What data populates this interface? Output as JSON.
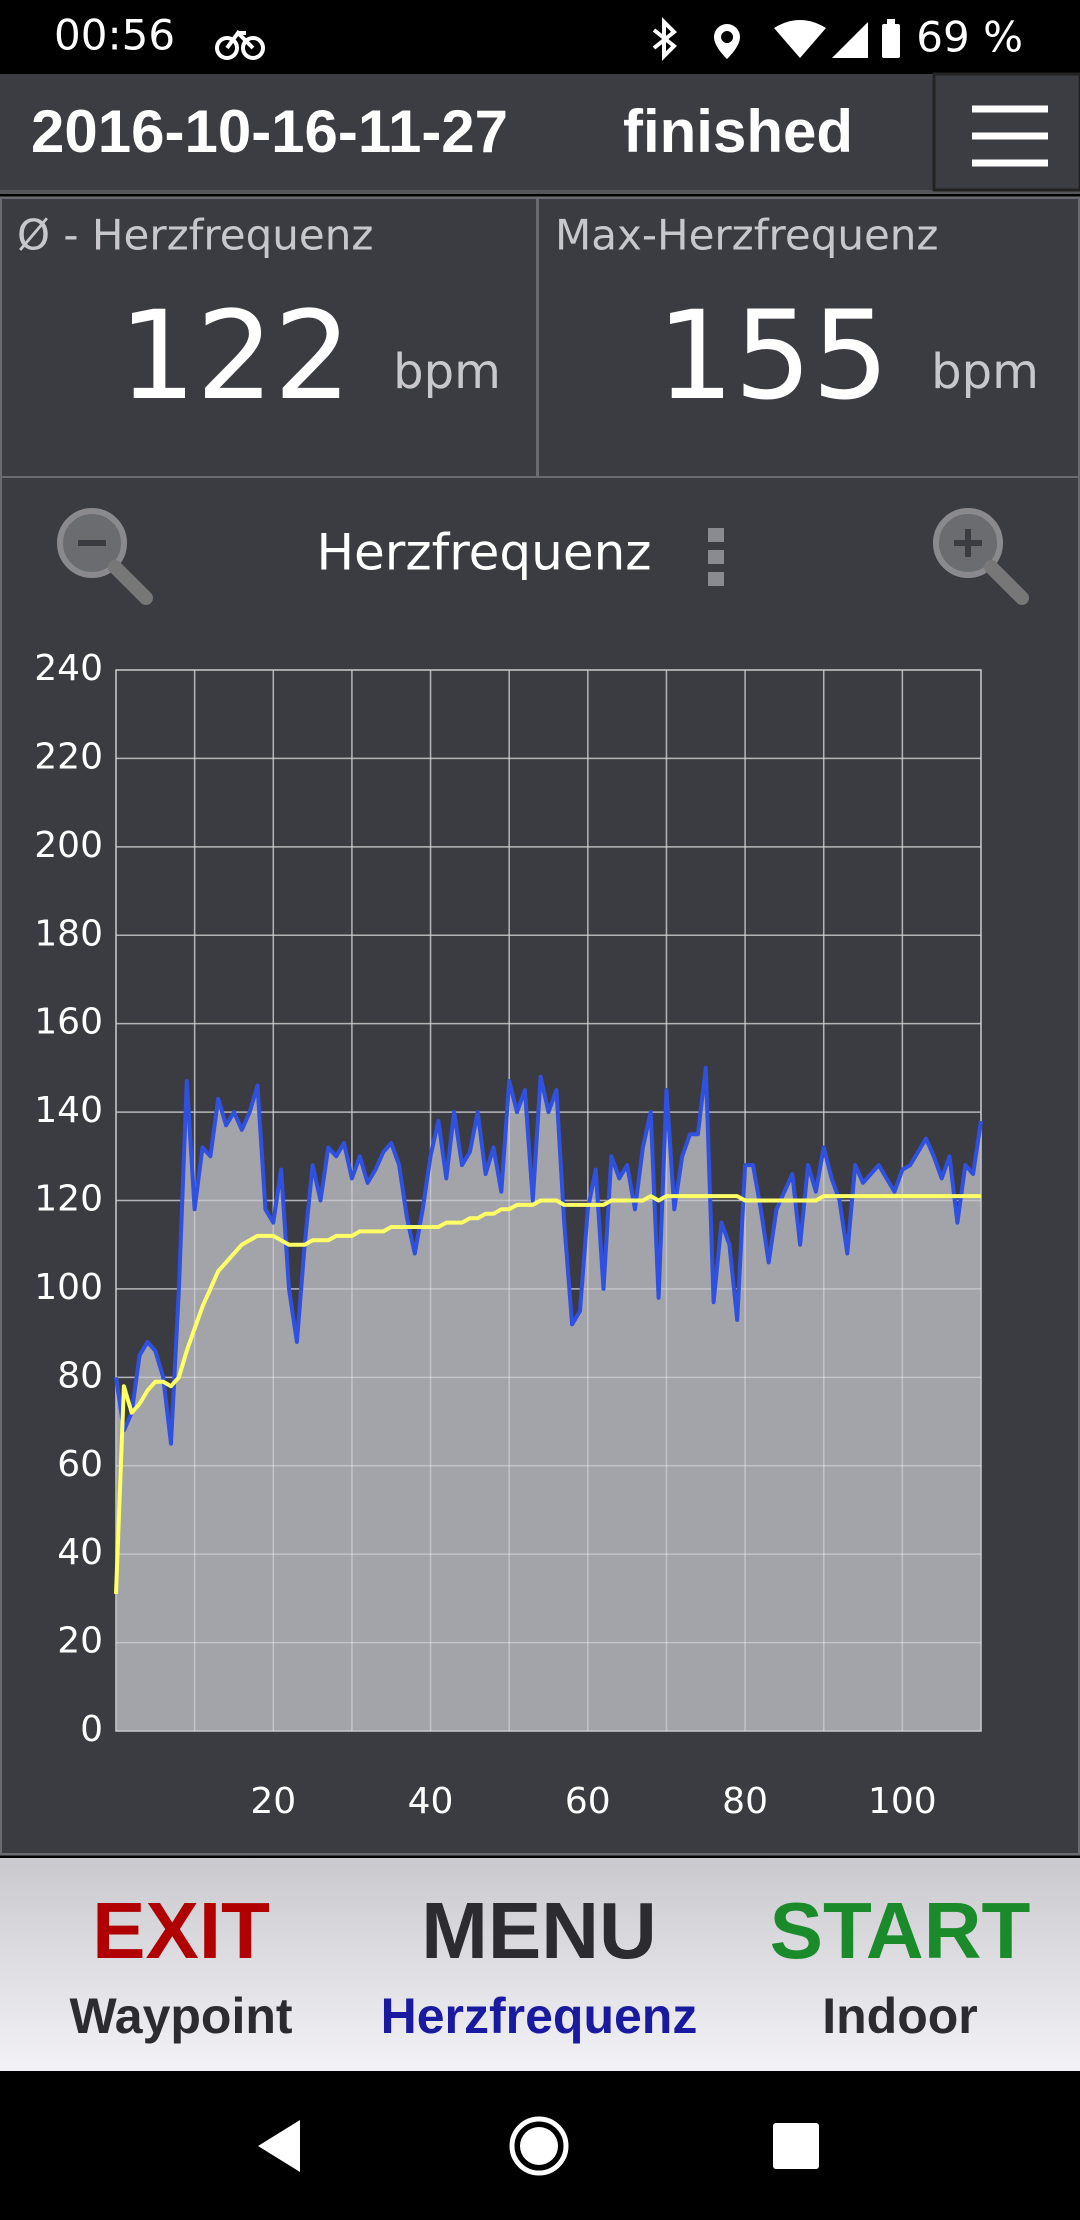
{
  "status_bar": {
    "time": "00:56",
    "battery": "69 %"
  },
  "header": {
    "title": "2016-10-16-11-27",
    "status": "finished"
  },
  "stats": [
    {
      "label": "Ø - Herzfrequenz",
      "value": 122,
      "unit": "bpm"
    },
    {
      "label": "Max-Herzfrequenz",
      "value": 155,
      "unit": "bpm"
    }
  ],
  "chart_data": {
    "type": "line",
    "title": "Herzfrequenz",
    "x": [
      0,
      1,
      2,
      3,
      4,
      5,
      6,
      7,
      8,
      9,
      10,
      11,
      12,
      13,
      14,
      15,
      16,
      17,
      18,
      19,
      20,
      21,
      22,
      23,
      24,
      25,
      26,
      27,
      28,
      29,
      30,
      31,
      32,
      33,
      34,
      35,
      36,
      37,
      38,
      39,
      40,
      41,
      42,
      43,
      44,
      45,
      46,
      47,
      48,
      49,
      50,
      51,
      52,
      53,
      54,
      55,
      56,
      57,
      58,
      59,
      60,
      61,
      62,
      63,
      64,
      65,
      66,
      67,
      68,
      69,
      70,
      71,
      72,
      73,
      74,
      75,
      76,
      77,
      78,
      79,
      80,
      81,
      82,
      83,
      84,
      85,
      86,
      87,
      88,
      89,
      90,
      91,
      92,
      93,
      94,
      95,
      96,
      97,
      98,
      99,
      100,
      101,
      102,
      103,
      104,
      105,
      106,
      107,
      108,
      109,
      110
    ],
    "series": [
      {
        "color": "#3050e0",
        "fill": "#a3a3aa",
        "values": [
          80,
          68,
          72,
          85,
          88,
          86,
          80,
          65,
          100,
          147,
          118,
          132,
          130,
          143,
          137,
          140,
          136,
          140,
          146,
          118,
          115,
          127,
          100,
          88,
          110,
          128,
          120,
          132,
          130,
          133,
          125,
          130,
          124,
          127,
          131,
          133,
          128,
          116,
          108,
          118,
          130,
          138,
          125,
          140,
          128,
          131,
          140,
          126,
          132,
          122,
          147,
          140,
          145,
          120,
          148,
          140,
          145,
          115,
          92,
          95,
          118,
          127,
          100,
          130,
          125,
          128,
          118,
          132,
          140,
          98,
          145,
          118,
          130,
          135,
          135,
          150,
          97,
          115,
          110,
          93,
          128,
          128,
          118,
          106,
          118,
          122,
          126,
          110,
          128,
          122,
          132,
          125,
          120,
          108,
          128,
          124,
          126,
          128,
          125,
          122,
          127,
          128,
          131,
          134,
          130,
          125,
          130,
          115,
          128,
          126,
          138
        ]
      },
      {
        "color": "#ffff66",
        "values": [
          31,
          78,
          72,
          74,
          77,
          79,
          79,
          78,
          80,
          86,
          91,
          96,
          100,
          104,
          106,
          108,
          110,
          111,
          112,
          112,
          112,
          111,
          110,
          110,
          110,
          111,
          111,
          111,
          112,
          112,
          112,
          113,
          113,
          113,
          113,
          114,
          114,
          114,
          114,
          114,
          114,
          114,
          115,
          115,
          115,
          116,
          116,
          117,
          117,
          118,
          118,
          119,
          119,
          119,
          120,
          120,
          120,
          119,
          119,
          119,
          119,
          119,
          119,
          120,
          120,
          120,
          120,
          120,
          121,
          120,
          121,
          121,
          121,
          121,
          121,
          121,
          121,
          121,
          121,
          121,
          120,
          120,
          120,
          120,
          120,
          120,
          120,
          120,
          120,
          120,
          121,
          121,
          121,
          121,
          121,
          121,
          121,
          121,
          121,
          121,
          121,
          121,
          121,
          121,
          121,
          121,
          121,
          121,
          121,
          121,
          121
        ]
      }
    ],
    "xlim": [
      0,
      110
    ],
    "ylim": [
      0,
      240
    ],
    "xticks": [
      20,
      40,
      60,
      80,
      100
    ],
    "xgrid": [
      0,
      10,
      20,
      30,
      40,
      50,
      60,
      70,
      80,
      90,
      100,
      110
    ],
    "yticks": [
      0,
      20,
      40,
      60,
      80,
      100,
      120,
      140,
      160,
      180,
      200,
      220,
      240
    ],
    "grid": true
  },
  "buttons": [
    {
      "label": "EXIT",
      "sublabel": "Waypoint",
      "color": "#b00000",
      "sublabel_color": "#2b2b30"
    },
    {
      "label": "MENU",
      "sublabel": "Herzfrequenz",
      "color": "#2b2b30",
      "sublabel_color": "#1a1aa0"
    },
    {
      "label": "START",
      "sublabel": "Indoor",
      "color": "#1a8a2a",
      "sublabel_color": "#2b2b30"
    }
  ]
}
